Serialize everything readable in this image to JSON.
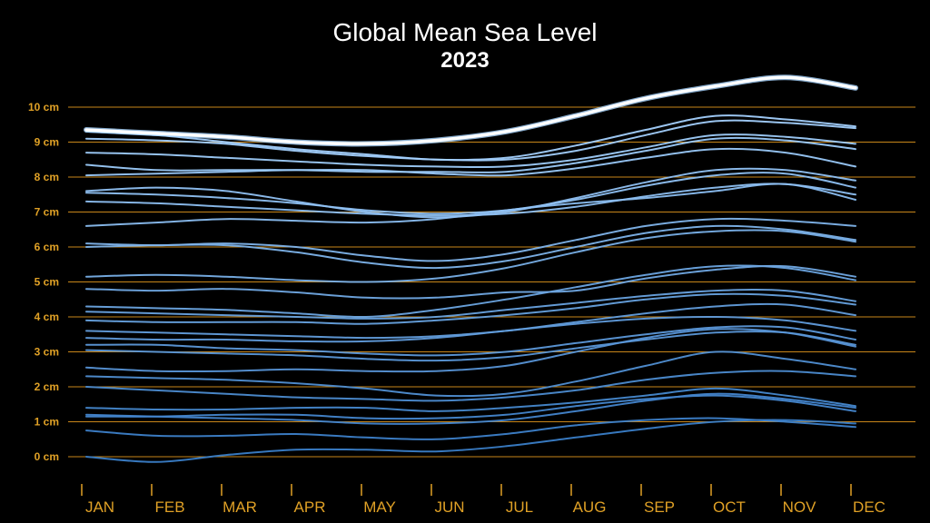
{
  "chart_data": {
    "type": "line",
    "title": "Global Mean Sea Level",
    "subtitle": "2023",
    "xlabel": "",
    "ylabel": "",
    "categories": [
      "JAN",
      "FEB",
      "MAR",
      "APR",
      "MAY",
      "JUN",
      "JUL",
      "AUG",
      "SEP",
      "OCT",
      "NOV",
      "DEC"
    ],
    "ytick_labels": [
      "0 cm",
      "1 cm",
      "2 cm",
      "3 cm",
      "4 cm",
      "5 cm",
      "6 cm",
      "7 cm",
      "8 cm",
      "9 cm",
      "10 cm"
    ],
    "ylim": [
      -0.3,
      10.7
    ],
    "grid": "horizontal",
    "highlight_series_index": 0,
    "colors": {
      "background": "#000000",
      "grid": "#c8861a",
      "ticks": "#e0a126",
      "title": "#ffffff",
      "highlight": "#ffffff",
      "series_light": "#a8d4ff",
      "series_dark": "#3a7ec8"
    },
    "series": [
      {
        "values": [
          9.35,
          9.25,
          9.15,
          9.0,
          8.95,
          9.05,
          9.3,
          9.75,
          10.25,
          10.6,
          10.85,
          10.55
        ]
      },
      {
        "values": [
          9.3,
          9.2,
          9.0,
          8.8,
          8.65,
          8.5,
          8.55,
          8.9,
          9.35,
          9.75,
          9.65,
          9.45
        ]
      },
      {
        "values": [
          9.1,
          9.05,
          8.95,
          8.75,
          8.6,
          8.5,
          8.5,
          8.75,
          9.2,
          9.6,
          9.55,
          9.4
        ]
      },
      {
        "values": [
          8.7,
          8.65,
          8.55,
          8.45,
          8.35,
          8.3,
          8.3,
          8.5,
          8.85,
          9.2,
          9.15,
          8.95
        ]
      },
      {
        "values": [
          8.35,
          8.2,
          8.2,
          8.2,
          8.15,
          8.15,
          8.15,
          8.4,
          8.75,
          9.1,
          9.05,
          8.8
        ]
      },
      {
        "values": [
          8.05,
          8.1,
          8.15,
          8.2,
          8.2,
          8.1,
          8.05,
          8.25,
          8.55,
          8.8,
          8.7,
          8.3
        ]
      },
      {
        "values": [
          7.6,
          7.7,
          7.6,
          7.3,
          7.0,
          6.85,
          7.0,
          7.4,
          7.85,
          8.2,
          8.2,
          7.9
        ]
      },
      {
        "values": [
          7.55,
          7.5,
          7.4,
          7.25,
          7.05,
          6.95,
          7.05,
          7.35,
          7.75,
          8.05,
          8.1,
          7.7
        ]
      },
      {
        "values": [
          7.3,
          7.25,
          7.15,
          7.05,
          6.95,
          6.9,
          6.95,
          7.15,
          7.45,
          7.7,
          7.8,
          7.5
        ]
      },
      {
        "values": [
          6.6,
          6.7,
          6.8,
          6.75,
          6.7,
          6.8,
          7.05,
          7.25,
          7.4,
          7.6,
          7.8,
          7.35
        ]
      },
      {
        "values": [
          6.1,
          6.05,
          6.1,
          6.0,
          5.75,
          5.6,
          5.8,
          6.2,
          6.6,
          6.8,
          6.75,
          6.6
        ]
      },
      {
        "values": [
          6.0,
          6.05,
          6.05,
          5.85,
          5.55,
          5.4,
          5.6,
          6.0,
          6.4,
          6.6,
          6.5,
          6.2
        ]
      },
      {
        "values": [
          5.15,
          5.2,
          5.15,
          5.05,
          5.0,
          5.1,
          5.4,
          5.85,
          6.25,
          6.45,
          6.45,
          6.15
        ]
      },
      {
        "values": [
          4.8,
          4.75,
          4.8,
          4.7,
          4.55,
          4.55,
          4.7,
          4.75,
          5.1,
          5.35,
          5.45,
          5.15
        ]
      },
      {
        "values": [
          4.3,
          4.25,
          4.2,
          4.1,
          4.0,
          4.2,
          4.5,
          4.85,
          5.2,
          5.45,
          5.4,
          5.05
        ]
      },
      {
        "values": [
          4.15,
          4.1,
          4.05,
          4.0,
          3.95,
          4.0,
          4.2,
          4.4,
          4.6,
          4.75,
          4.75,
          4.45
        ]
      },
      {
        "values": [
          3.9,
          3.85,
          3.85,
          3.85,
          3.8,
          3.9,
          4.05,
          4.25,
          4.5,
          4.65,
          4.6,
          4.35
        ]
      },
      {
        "values": [
          3.6,
          3.55,
          3.5,
          3.45,
          3.4,
          3.45,
          3.6,
          3.85,
          4.1,
          4.3,
          4.35,
          4.05
        ]
      },
      {
        "values": [
          3.4,
          3.35,
          3.35,
          3.3,
          3.3,
          3.4,
          3.6,
          3.8,
          3.95,
          4.0,
          3.9,
          3.6
        ]
      },
      {
        "values": [
          3.2,
          3.2,
          3.1,
          3.05,
          2.95,
          2.9,
          3.0,
          3.25,
          3.5,
          3.7,
          3.7,
          3.35
        ]
      },
      {
        "values": [
          3.05,
          3.0,
          2.95,
          2.9,
          2.8,
          2.75,
          2.85,
          3.1,
          3.35,
          3.55,
          3.55,
          3.2
        ]
      },
      {
        "values": [
          2.55,
          2.45,
          2.45,
          2.5,
          2.45,
          2.45,
          2.6,
          3.0,
          3.4,
          3.65,
          3.55,
          3.15
        ]
      },
      {
        "values": [
          2.3,
          2.25,
          2.2,
          2.1,
          1.95,
          1.75,
          1.8,
          2.15,
          2.6,
          3.0,
          2.8,
          2.5
        ]
      },
      {
        "values": [
          2.0,
          1.9,
          1.8,
          1.7,
          1.65,
          1.6,
          1.7,
          1.9,
          2.2,
          2.4,
          2.45,
          2.3
        ]
      },
      {
        "values": [
          1.4,
          1.35,
          1.35,
          1.4,
          1.4,
          1.3,
          1.4,
          1.55,
          1.75,
          1.95,
          1.75,
          1.45
        ]
      },
      {
        "values": [
          1.2,
          1.15,
          1.1,
          1.05,
          0.95,
          0.95,
          1.05,
          1.3,
          1.6,
          1.8,
          1.65,
          1.4
        ]
      },
      {
        "values": [
          1.15,
          1.15,
          1.2,
          1.2,
          1.1,
          1.1,
          1.2,
          1.45,
          1.65,
          1.75,
          1.6,
          1.3
        ]
      },
      {
        "values": [
          0.75,
          0.6,
          0.6,
          0.65,
          0.55,
          0.5,
          0.65,
          0.9,
          1.05,
          1.1,
          1.0,
          0.85
        ]
      },
      {
        "values": [
          0.0,
          -0.15,
          0.05,
          0.2,
          0.2,
          0.15,
          0.3,
          0.55,
          0.8,
          1.0,
          1.05,
          0.95
        ]
      }
    ]
  }
}
